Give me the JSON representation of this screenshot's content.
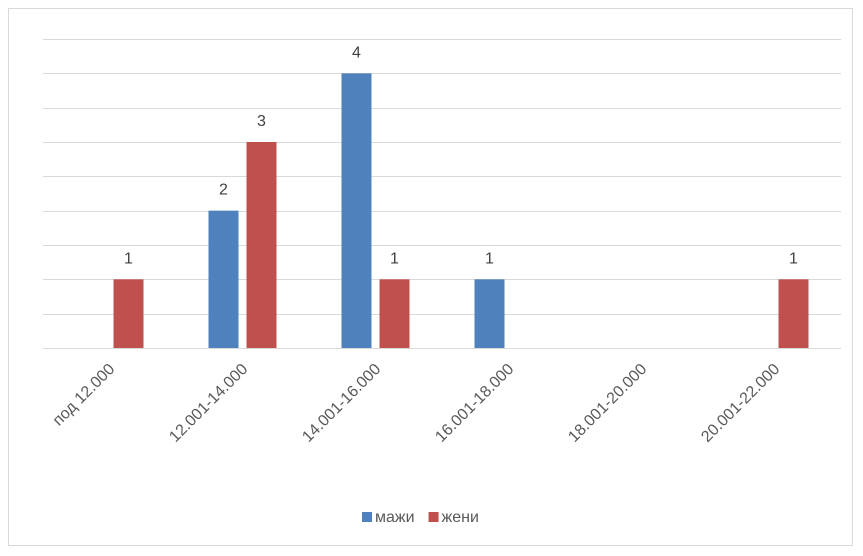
{
  "chart_data": {
    "type": "bar",
    "categories": [
      "под 12.000",
      "12.001-14.000",
      "14.001-16.000",
      "16.001-18.000",
      "18.001-20.000",
      "20.001-22.000"
    ],
    "series": [
      {
        "name": "мажи",
        "color": "#4f81bd",
        "values": [
          0,
          2,
          4,
          1,
          0,
          0
        ]
      },
      {
        "name": "жени",
        "color": "#c0504d",
        "values": [
          1,
          3,
          1,
          0,
          0,
          1
        ]
      }
    ],
    "ylim": [
      0,
      4.5
    ],
    "grid_step": 0.5,
    "y_tick_labels": false,
    "legend": "bottom",
    "grid": true
  }
}
